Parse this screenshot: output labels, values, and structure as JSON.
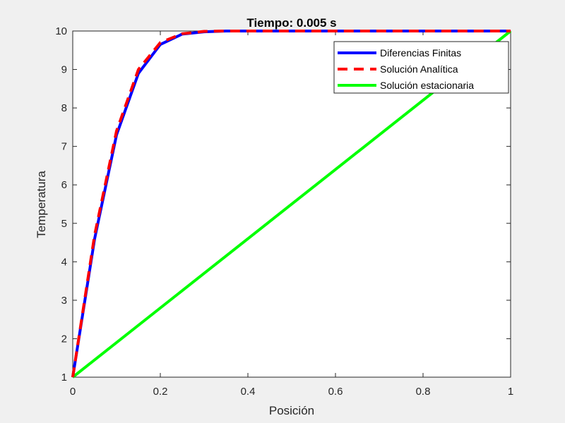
{
  "chart_data": {
    "type": "line",
    "title": "Tiempo: 0.005 s",
    "xlabel": "Posición",
    "ylabel": "Temperatura",
    "xlim": [
      0,
      1
    ],
    "ylim": [
      1,
      10
    ],
    "xticks": [
      "0",
      "0.2",
      "0.4",
      "0.6",
      "0.8",
      "1"
    ],
    "yticks": [
      "1",
      "2",
      "3",
      "4",
      "5",
      "6",
      "7",
      "8",
      "9",
      "10"
    ],
    "grid": false,
    "legend_position": "northeast",
    "series": [
      {
        "name": "Diferencias Finitas",
        "color": "#0000ff",
        "style": "solid",
        "x": [
          0,
          0.05,
          0.1,
          0.15,
          0.2,
          0.25,
          0.3,
          0.35,
          0.4,
          0.45,
          0.5,
          0.55,
          0.6,
          0.65,
          0.7,
          0.75,
          0.8,
          0.85,
          0.9,
          0.95,
          1
        ],
        "y": [
          1,
          4.6,
          7.3,
          8.9,
          9.65,
          9.92,
          9.98,
          10,
          10,
          10,
          10,
          10,
          10,
          10,
          10,
          10,
          10,
          10,
          10,
          10,
          10
        ]
      },
      {
        "name": "Solución Analítica",
        "color": "#ff0000",
        "style": "dashed",
        "x": [
          0,
          0.05,
          0.1,
          0.15,
          0.2,
          0.25,
          0.3,
          0.35,
          0.4,
          0.45,
          0.5,
          0.55,
          0.6,
          0.65,
          0.7,
          0.75,
          0.8,
          0.85,
          0.9,
          0.95,
          1
        ],
        "y": [
          1,
          4.7,
          7.4,
          9.0,
          9.7,
          9.93,
          9.99,
          10,
          10,
          10,
          10,
          10,
          10,
          10,
          10,
          10,
          10,
          10,
          10,
          10,
          10
        ]
      },
      {
        "name": "Solución estacionaria",
        "color": "#00ff00",
        "style": "solid",
        "x": [
          0,
          1
        ],
        "y": [
          1,
          10
        ]
      }
    ]
  }
}
